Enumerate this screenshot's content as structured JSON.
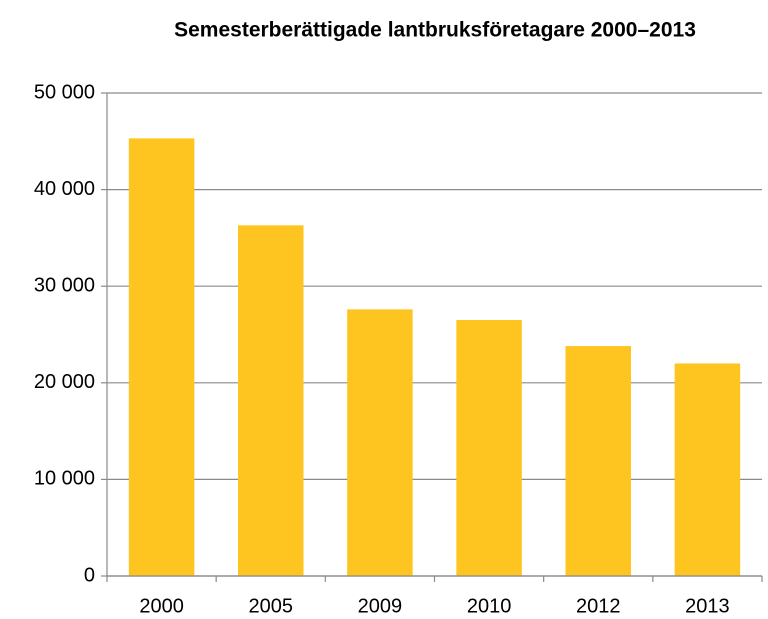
{
  "chart_data": {
    "type": "bar",
    "title": "Semesterberättigade lantbruksföretagare 2000–2013",
    "categories": [
      "2000",
      "2005",
      "2009",
      "2010",
      "2012",
      "2013"
    ],
    "values": [
      45300,
      36300,
      27600,
      26500,
      23800,
      22000
    ],
    "color": "#fec41f",
    "ylim": [
      0,
      50000
    ],
    "yticks": [
      0,
      {
        "value": 10000,
        "label": "10 000"
      },
      {
        "value": 20000,
        "label": "20 000"
      },
      {
        "value": 30000,
        "label": "30 000"
      },
      {
        "value": 40000,
        "label": "40 000"
      },
      {
        "value": 50000,
        "label": "50 000"
      }
    ],
    "grid": true
  }
}
